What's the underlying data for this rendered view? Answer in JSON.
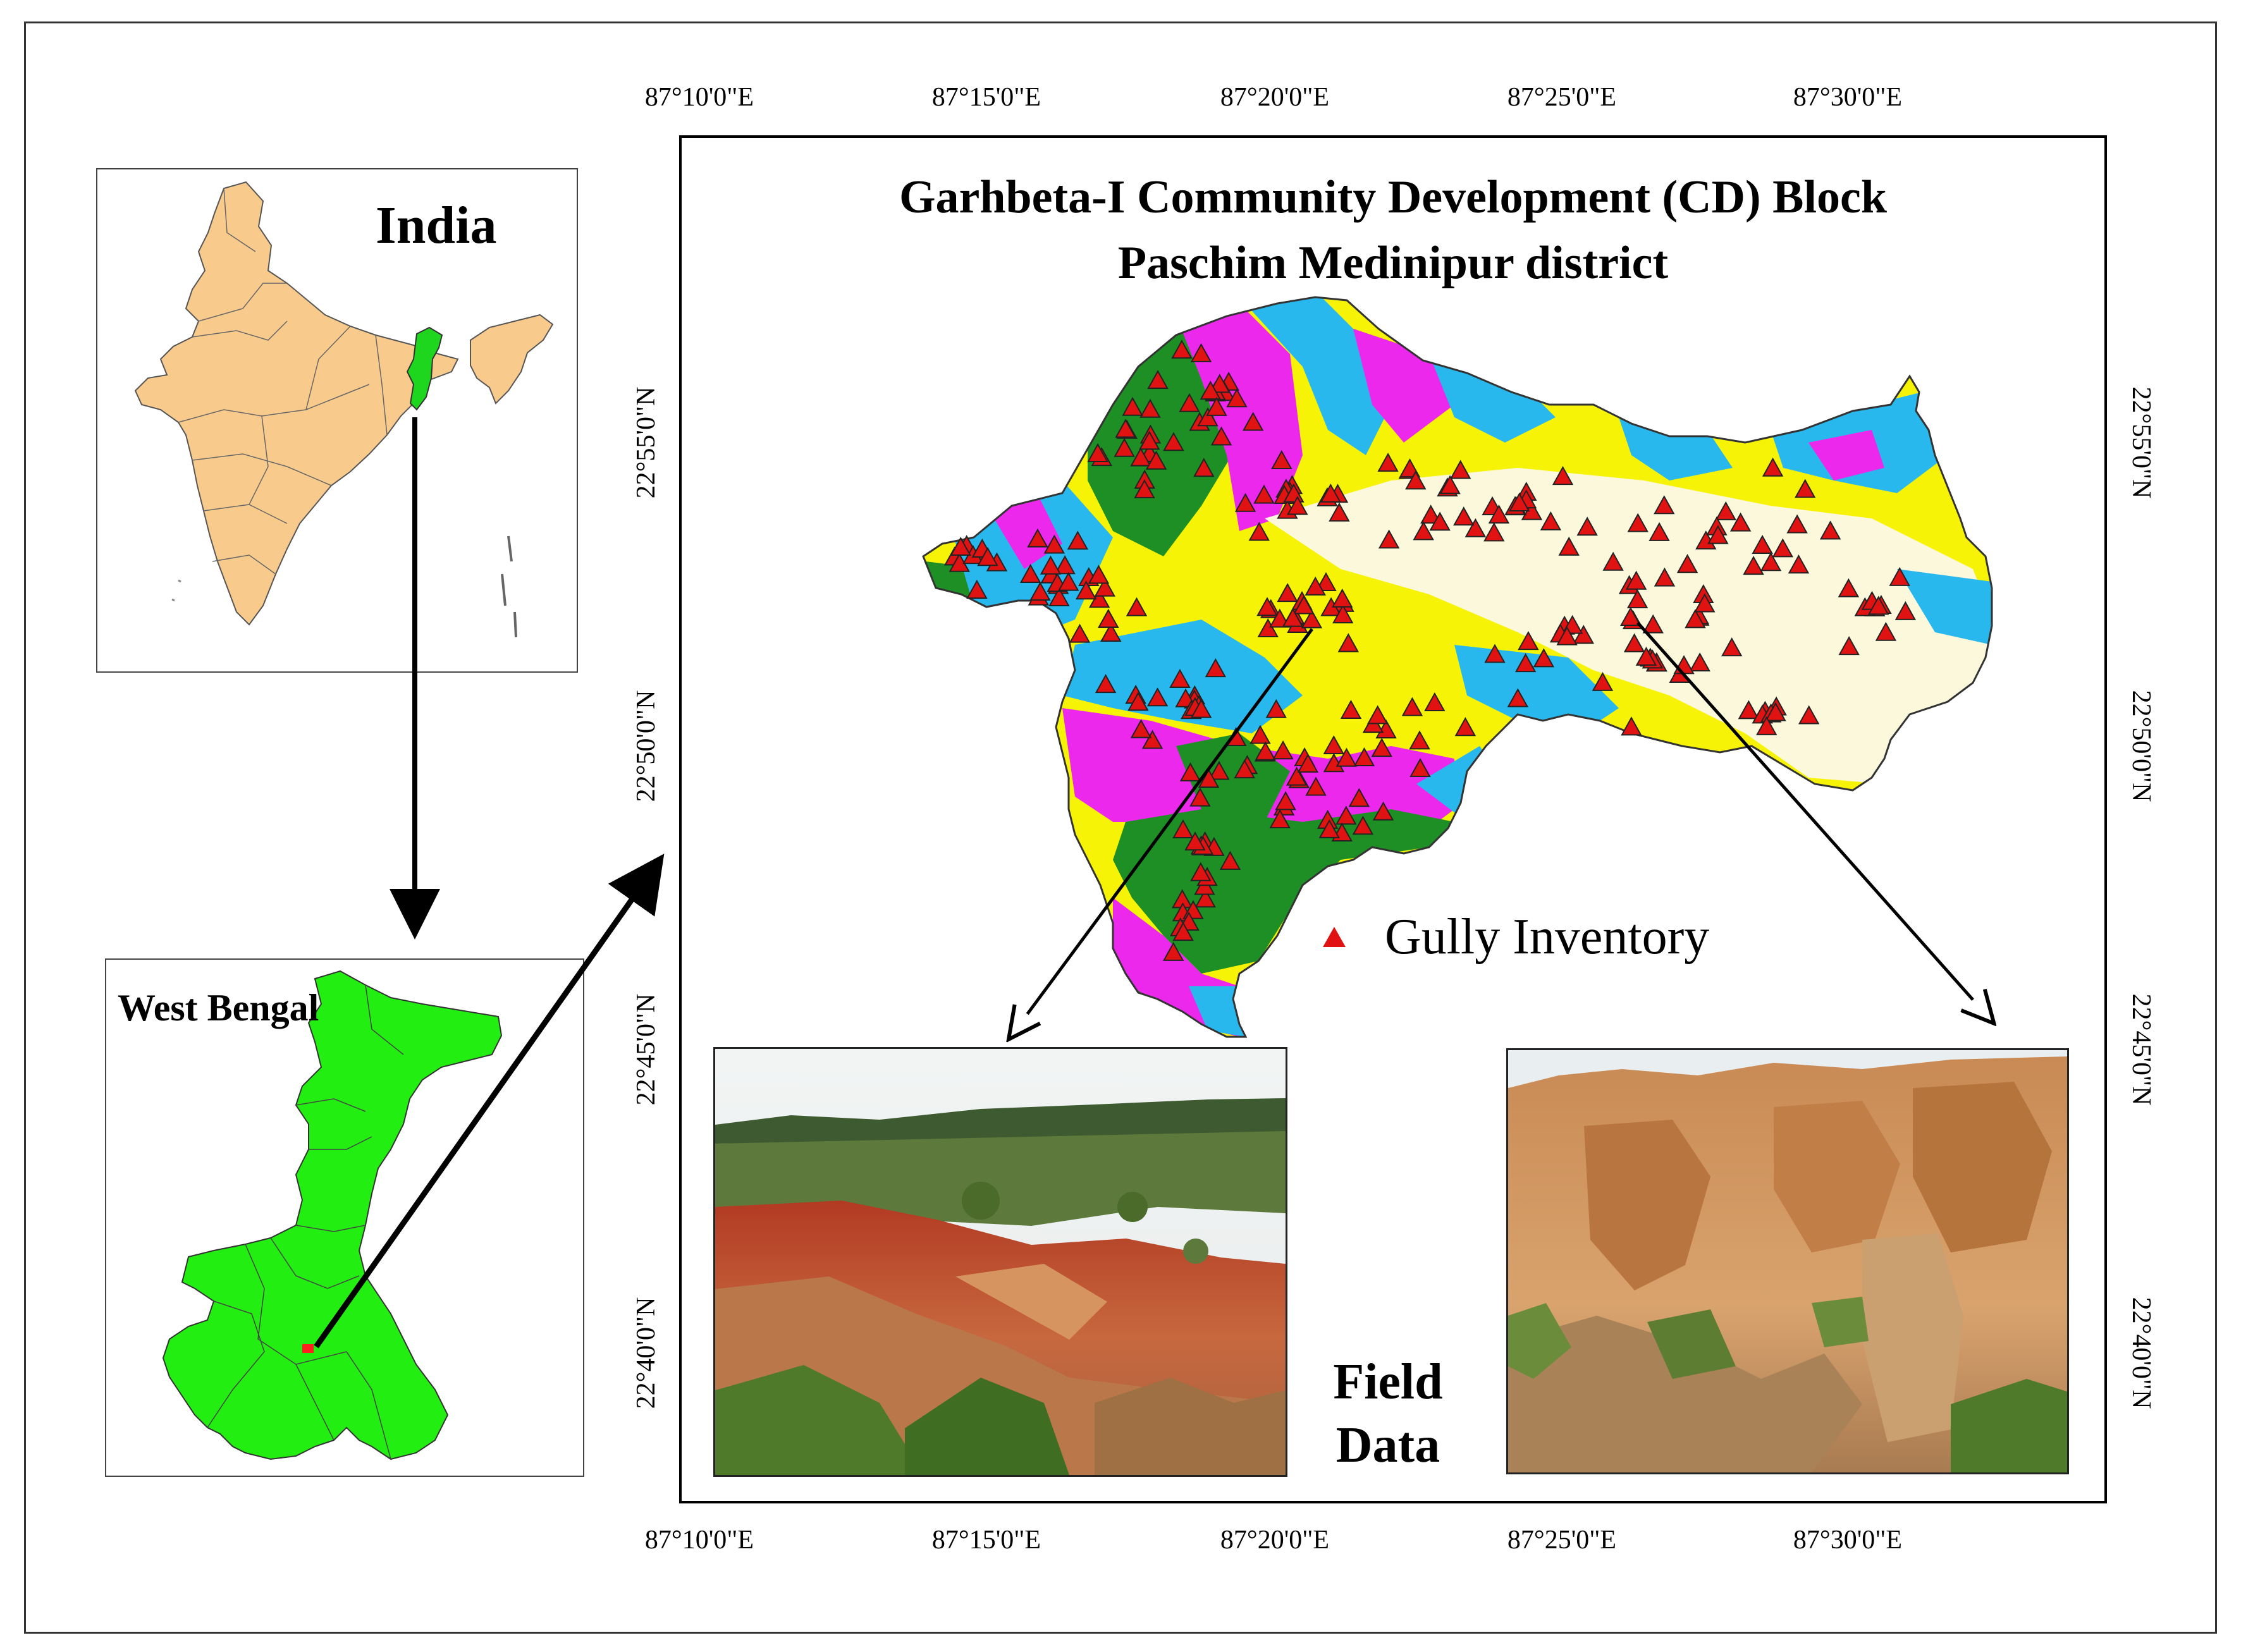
{
  "insets": {
    "india": {
      "title": "India"
    },
    "west_bengal": {
      "title": "West Bengal"
    }
  },
  "main_map": {
    "title_line1": "Garhbeta-I Community Development (CD) Block",
    "title_line2": "Paschim Medinipur district",
    "longitude_labels_top": [
      "87°10'0\"E",
      "87°15'0\"E",
      "87°20'0\"E",
      "87°25'0\"E",
      "87°30'0\"E"
    ],
    "longitude_labels_bottom": [
      "87°10'0\"E",
      "87°15'0\"E",
      "87°20'0\"E",
      "87°25'0\"E",
      "87°30'0\"E"
    ],
    "latitude_labels_left": [
      "22°55'0\"N",
      "22°50'0\"N",
      "22°45'0\"N",
      "22°40'0\"N"
    ],
    "latitude_labels_right": [
      "22°55'0\"N",
      "22°50'0\"N",
      "22°45'0\"N",
      "22°40'0\"N"
    ],
    "zone_colors": [
      "#1e8f24",
      "#ec28ec",
      "#29b8ee",
      "#f7f307",
      "#fbf8dc"
    ],
    "legend": {
      "label": "Gully Inventory",
      "symbol": "red-triangle",
      "color": "#e11212"
    }
  },
  "field_data": {
    "line1": "Field",
    "line2": "Data"
  },
  "colors": {
    "india_fill": "#f8cb8d",
    "west_bengal_fill": "#22ee11",
    "highlight_green": "#1fd61f",
    "location_marker": "#ff1f1f"
  }
}
